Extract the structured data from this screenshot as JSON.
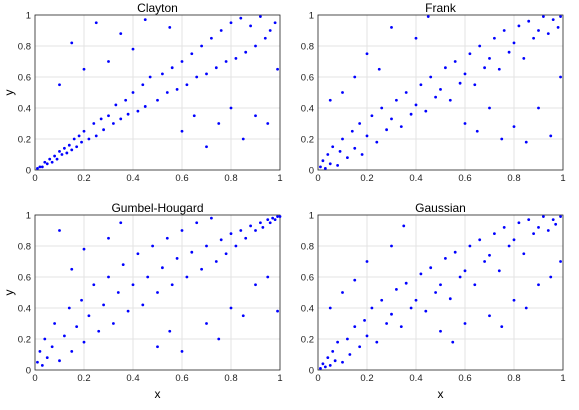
{
  "chart_data": [
    {
      "type": "scatter",
      "title": "Clayton",
      "xlabel": "",
      "ylabel": "y",
      "xlim": [
        0,
        1
      ],
      "ylim": [
        0,
        1
      ],
      "xticks": [
        "0",
        "0.2",
        "0.4",
        "0.6",
        "0.8",
        "1"
      ],
      "yticks": [
        "0",
        "0.2",
        "0.4",
        "0.6",
        "0.8",
        "1"
      ],
      "grid": true,
      "marker_color": "#0000ff",
      "points": [
        [
          0.01,
          0.01
        ],
        [
          0.02,
          0.02
        ],
        [
          0.03,
          0.02
        ],
        [
          0.04,
          0.05
        ],
        [
          0.05,
          0.04
        ],
        [
          0.06,
          0.07
        ],
        [
          0.07,
          0.05
        ],
        [
          0.08,
          0.09
        ],
        [
          0.09,
          0.07
        ],
        [
          0.1,
          0.12
        ],
        [
          0.11,
          0.1
        ],
        [
          0.12,
          0.14
        ],
        [
          0.13,
          0.11
        ],
        [
          0.14,
          0.16
        ],
        [
          0.15,
          0.13
        ],
        [
          0.16,
          0.2
        ],
        [
          0.17,
          0.15
        ],
        [
          0.18,
          0.22
        ],
        [
          0.19,
          0.18
        ],
        [
          0.2,
          0.25
        ],
        [
          0.22,
          0.2
        ],
        [
          0.24,
          0.3
        ],
        [
          0.25,
          0.22
        ],
        [
          0.27,
          0.33
        ],
        [
          0.28,
          0.26
        ],
        [
          0.3,
          0.35
        ],
        [
          0.32,
          0.3
        ],
        [
          0.33,
          0.42
        ],
        [
          0.35,
          0.33
        ],
        [
          0.37,
          0.45
        ],
        [
          0.38,
          0.36
        ],
        [
          0.4,
          0.5
        ],
        [
          0.42,
          0.38
        ],
        [
          0.44,
          0.55
        ],
        [
          0.45,
          0.41
        ],
        [
          0.47,
          0.6
        ],
        [
          0.5,
          0.45
        ],
        [
          0.52,
          0.62
        ],
        [
          0.54,
          0.5
        ],
        [
          0.56,
          0.66
        ],
        [
          0.58,
          0.52
        ],
        [
          0.6,
          0.7
        ],
        [
          0.62,
          0.55
        ],
        [
          0.64,
          0.75
        ],
        [
          0.66,
          0.6
        ],
        [
          0.68,
          0.8
        ],
        [
          0.7,
          0.62
        ],
        [
          0.72,
          0.85
        ],
        [
          0.74,
          0.66
        ],
        [
          0.76,
          0.9
        ],
        [
          0.78,
          0.7
        ],
        [
          0.8,
          0.95
        ],
        [
          0.82,
          0.72
        ],
        [
          0.84,
          0.98
        ],
        [
          0.86,
          0.76
        ],
        [
          0.88,
          0.93
        ],
        [
          0.9,
          0.8
        ],
        [
          0.92,
          0.99
        ],
        [
          0.94,
          0.85
        ],
        [
          0.96,
          0.9
        ],
        [
          0.98,
          0.95
        ],
        [
          0.1,
          0.55
        ],
        [
          0.15,
          0.82
        ],
        [
          0.2,
          0.65
        ],
        [
          0.25,
          0.95
        ],
        [
          0.3,
          0.7
        ],
        [
          0.35,
          0.88
        ],
        [
          0.4,
          0.78
        ],
        [
          0.45,
          0.97
        ],
        [
          0.55,
          0.92
        ],
        [
          0.6,
          0.25
        ],
        [
          0.65,
          0.35
        ],
        [
          0.7,
          0.15
        ],
        [
          0.75,
          0.3
        ],
        [
          0.8,
          0.4
        ],
        [
          0.85,
          0.2
        ],
        [
          0.9,
          0.35
        ],
        [
          0.95,
          0.3
        ],
        [
          0.99,
          0.65
        ]
      ]
    },
    {
      "type": "scatter",
      "title": "Frank",
      "xlabel": "",
      "ylabel": "",
      "xlim": [
        0,
        1
      ],
      "ylim": [
        0,
        1
      ],
      "xticks": [
        "0",
        "0.2",
        "0.4",
        "0.6",
        "0.8",
        "1"
      ],
      "yticks": [
        "0",
        "0.2",
        "0.4",
        "0.6",
        "0.8",
        "1"
      ],
      "grid": true,
      "marker_color": "#0000ff",
      "points": [
        [
          0.01,
          0.02
        ],
        [
          0.02,
          0.06
        ],
        [
          0.03,
          0.01
        ],
        [
          0.04,
          0.1
        ],
        [
          0.05,
          0.04
        ],
        [
          0.06,
          0.15
        ],
        [
          0.08,
          0.03
        ],
        [
          0.09,
          0.12
        ],
        [
          0.1,
          0.2
        ],
        [
          0.12,
          0.08
        ],
        [
          0.14,
          0.25
        ],
        [
          0.15,
          0.14
        ],
        [
          0.17,
          0.3
        ],
        [
          0.18,
          0.1
        ],
        [
          0.2,
          0.22
        ],
        [
          0.22,
          0.35
        ],
        [
          0.24,
          0.18
        ],
        [
          0.26,
          0.4
        ],
        [
          0.28,
          0.26
        ],
        [
          0.3,
          0.33
        ],
        [
          0.32,
          0.45
        ],
        [
          0.34,
          0.28
        ],
        [
          0.36,
          0.5
        ],
        [
          0.38,
          0.36
        ],
        [
          0.4,
          0.42
        ],
        [
          0.42,
          0.55
        ],
        [
          0.44,
          0.38
        ],
        [
          0.46,
          0.6
        ],
        [
          0.48,
          0.47
        ],
        [
          0.5,
          0.52
        ],
        [
          0.52,
          0.66
        ],
        [
          0.54,
          0.45
        ],
        [
          0.56,
          0.7
        ],
        [
          0.58,
          0.56
        ],
        [
          0.6,
          0.62
        ],
        [
          0.62,
          0.75
        ],
        [
          0.64,
          0.55
        ],
        [
          0.66,
          0.8
        ],
        [
          0.68,
          0.66
        ],
        [
          0.7,
          0.72
        ],
        [
          0.72,
          0.85
        ],
        [
          0.74,
          0.65
        ],
        [
          0.76,
          0.9
        ],
        [
          0.78,
          0.76
        ],
        [
          0.8,
          0.82
        ],
        [
          0.82,
          0.93
        ],
        [
          0.84,
          0.72
        ],
        [
          0.86,
          0.96
        ],
        [
          0.88,
          0.85
        ],
        [
          0.9,
          0.9
        ],
        [
          0.92,
          0.99
        ],
        [
          0.94,
          0.88
        ],
        [
          0.96,
          0.97
        ],
        [
          0.98,
          0.92
        ],
        [
          0.99,
          0.99
        ],
        [
          0.05,
          0.45
        ],
        [
          0.1,
          0.5
        ],
        [
          0.15,
          0.6
        ],
        [
          0.2,
          0.75
        ],
        [
          0.25,
          0.65
        ],
        [
          0.3,
          0.92
        ],
        [
          0.4,
          0.85
        ],
        [
          0.45,
          0.99
        ],
        [
          0.6,
          0.3
        ],
        [
          0.65,
          0.25
        ],
        [
          0.7,
          0.4
        ],
        [
          0.75,
          0.2
        ],
        [
          0.8,
          0.28
        ],
        [
          0.85,
          0.18
        ],
        [
          0.9,
          0.4
        ],
        [
          0.95,
          0.22
        ],
        [
          0.99,
          0.6
        ]
      ]
    },
    {
      "type": "scatter",
      "title": "Gumbel-Hougard",
      "xlabel": "x",
      "ylabel": "y",
      "xlim": [
        0,
        1
      ],
      "ylim": [
        0,
        1
      ],
      "xticks": [
        "0",
        "0.2",
        "0.4",
        "0.6",
        "0.8",
        "1"
      ],
      "yticks": [
        "0",
        "0.2",
        "0.4",
        "0.6",
        "0.8",
        "1"
      ],
      "grid": true,
      "marker_color": "#0000ff",
      "points": [
        [
          0.01,
          0.05
        ],
        [
          0.02,
          0.12
        ],
        [
          0.03,
          0.03
        ],
        [
          0.04,
          0.2
        ],
        [
          0.05,
          0.08
        ],
        [
          0.07,
          0.15
        ],
        [
          0.08,
          0.3
        ],
        [
          0.1,
          0.06
        ],
        [
          0.12,
          0.22
        ],
        [
          0.14,
          0.4
        ],
        [
          0.15,
          0.12
        ],
        [
          0.17,
          0.28
        ],
        [
          0.19,
          0.45
        ],
        [
          0.2,
          0.18
        ],
        [
          0.22,
          0.35
        ],
        [
          0.24,
          0.55
        ],
        [
          0.26,
          0.25
        ],
        [
          0.28,
          0.42
        ],
        [
          0.3,
          0.6
        ],
        [
          0.32,
          0.3
        ],
        [
          0.34,
          0.5
        ],
        [
          0.36,
          0.68
        ],
        [
          0.38,
          0.38
        ],
        [
          0.4,
          0.55
        ],
        [
          0.42,
          0.75
        ],
        [
          0.44,
          0.42
        ],
        [
          0.46,
          0.6
        ],
        [
          0.48,
          0.8
        ],
        [
          0.5,
          0.5
        ],
        [
          0.52,
          0.66
        ],
        [
          0.54,
          0.85
        ],
        [
          0.56,
          0.55
        ],
        [
          0.58,
          0.72
        ],
        [
          0.6,
          0.9
        ],
        [
          0.62,
          0.6
        ],
        [
          0.64,
          0.76
        ],
        [
          0.66,
          0.95
        ],
        [
          0.68,
          0.65
        ],
        [
          0.7,
          0.8
        ],
        [
          0.72,
          0.98
        ],
        [
          0.74,
          0.7
        ],
        [
          0.76,
          0.84
        ],
        [
          0.78,
          0.75
        ],
        [
          0.8,
          0.88
        ],
        [
          0.82,
          0.8
        ],
        [
          0.84,
          0.9
        ],
        [
          0.86,
          0.85
        ],
        [
          0.88,
          0.93
        ],
        [
          0.9,
          0.9
        ],
        [
          0.92,
          0.95
        ],
        [
          0.93,
          0.92
        ],
        [
          0.95,
          0.97
        ],
        [
          0.96,
          0.95
        ],
        [
          0.97,
          0.98
        ],
        [
          0.98,
          0.97
        ],
        [
          0.99,
          0.99
        ],
        [
          1.0,
          0.99
        ],
        [
          0.1,
          0.9
        ],
        [
          0.15,
          0.65
        ],
        [
          0.2,
          0.78
        ],
        [
          0.3,
          0.85
        ],
        [
          0.35,
          0.95
        ],
        [
          0.5,
          0.15
        ],
        [
          0.55,
          0.25
        ],
        [
          0.6,
          0.12
        ],
        [
          0.7,
          0.3
        ],
        [
          0.75,
          0.2
        ],
        [
          0.8,
          0.4
        ],
        [
          0.85,
          0.35
        ],
        [
          0.9,
          0.55
        ],
        [
          0.95,
          0.6
        ],
        [
          0.99,
          0.38
        ]
      ]
    },
    {
      "type": "scatter",
      "title": "Gaussian",
      "xlabel": "x",
      "ylabel": "",
      "xlim": [
        0,
        1
      ],
      "ylim": [
        0,
        1
      ],
      "xticks": [
        "0",
        "0.2",
        "0.4",
        "0.6",
        "0.8",
        "1"
      ],
      "yticks": [
        "0",
        "0.2",
        "0.4",
        "0.6",
        "0.8",
        "1"
      ],
      "grid": true,
      "marker_color": "#0000ff",
      "points": [
        [
          0.01,
          0.01
        ],
        [
          0.02,
          0.04
        ],
        [
          0.03,
          0.02
        ],
        [
          0.04,
          0.08
        ],
        [
          0.05,
          0.03
        ],
        [
          0.06,
          0.12
        ],
        [
          0.07,
          0.06
        ],
        [
          0.08,
          0.18
        ],
        [
          0.1,
          0.05
        ],
        [
          0.12,
          0.2
        ],
        [
          0.13,
          0.1
        ],
        [
          0.15,
          0.28
        ],
        [
          0.17,
          0.15
        ],
        [
          0.19,
          0.32
        ],
        [
          0.2,
          0.22
        ],
        [
          0.22,
          0.4
        ],
        [
          0.24,
          0.18
        ],
        [
          0.26,
          0.45
        ],
        [
          0.28,
          0.3
        ],
        [
          0.3,
          0.36
        ],
        [
          0.32,
          0.52
        ],
        [
          0.34,
          0.28
        ],
        [
          0.36,
          0.56
        ],
        [
          0.38,
          0.4
        ],
        [
          0.4,
          0.45
        ],
        [
          0.42,
          0.62
        ],
        [
          0.44,
          0.38
        ],
        [
          0.46,
          0.66
        ],
        [
          0.48,
          0.5
        ],
        [
          0.5,
          0.55
        ],
        [
          0.52,
          0.72
        ],
        [
          0.54,
          0.46
        ],
        [
          0.56,
          0.76
        ],
        [
          0.58,
          0.6
        ],
        [
          0.6,
          0.64
        ],
        [
          0.62,
          0.8
        ],
        [
          0.64,
          0.55
        ],
        [
          0.66,
          0.84
        ],
        [
          0.68,
          0.7
        ],
        [
          0.7,
          0.74
        ],
        [
          0.72,
          0.88
        ],
        [
          0.74,
          0.64
        ],
        [
          0.76,
          0.92
        ],
        [
          0.78,
          0.8
        ],
        [
          0.8,
          0.84
        ],
        [
          0.82,
          0.95
        ],
        [
          0.84,
          0.75
        ],
        [
          0.86,
          0.97
        ],
        [
          0.88,
          0.88
        ],
        [
          0.9,
          0.92
        ],
        [
          0.92,
          0.99
        ],
        [
          0.94,
          0.9
        ],
        [
          0.96,
          0.97
        ],
        [
          0.97,
          0.94
        ],
        [
          0.99,
          0.99
        ],
        [
          0.05,
          0.4
        ],
        [
          0.1,
          0.5
        ],
        [
          0.15,
          0.58
        ],
        [
          0.2,
          0.7
        ],
        [
          0.3,
          0.8
        ],
        [
          0.35,
          0.93
        ],
        [
          0.5,
          0.25
        ],
        [
          0.55,
          0.18
        ],
        [
          0.6,
          0.3
        ],
        [
          0.7,
          0.35
        ],
        [
          0.75,
          0.28
        ],
        [
          0.8,
          0.45
        ],
        [
          0.85,
          0.4
        ],
        [
          0.9,
          0.55
        ],
        [
          0.95,
          0.6
        ],
        [
          0.99,
          0.7
        ]
      ]
    }
  ]
}
